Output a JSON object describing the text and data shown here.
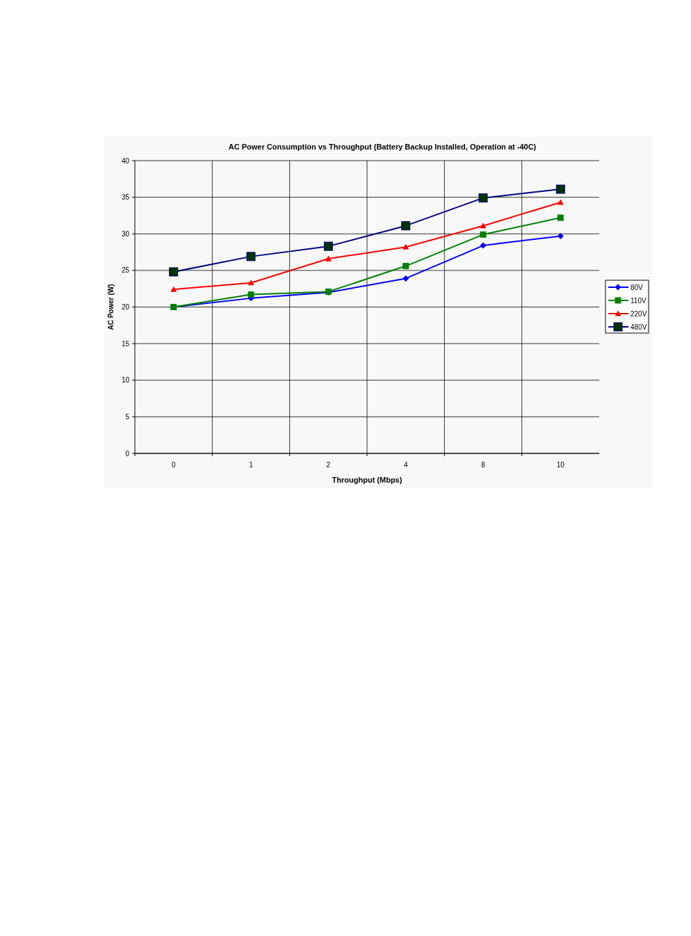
{
  "chart_data": {
    "type": "line",
    "title": "AC Power Consumption vs Throughput (Battery Backup Installed, Operation at -40C)",
    "xlabel": "Throughput (Mbps)",
    "ylabel": "AC Power (W)",
    "categories": [
      "0",
      "1",
      "2",
      "4",
      "8",
      "10"
    ],
    "ylim": [
      0,
      40
    ],
    "yticks": [
      0,
      5,
      10,
      15,
      20,
      25,
      30,
      35,
      40
    ],
    "grid": true,
    "legend": "right",
    "series": [
      {
        "name": "80V",
        "color": "#0000ff",
        "marker": "diamond",
        "values": [
          20,
          21.2,
          22.0,
          23.9,
          28.4,
          29.7
        ]
      },
      {
        "name": "110V",
        "color": "#008000",
        "marker": "square",
        "values": [
          20,
          21.7,
          22.1,
          25.6,
          29.9,
          32.2
        ]
      },
      {
        "name": "220V",
        "color": "#ff0000",
        "marker": "triangle",
        "values": [
          22.4,
          23.3,
          26.6,
          28.2,
          31.1,
          34.3
        ]
      },
      {
        "name": "480V",
        "color": "#000080",
        "marker": "square",
        "values": [
          24.8,
          26.9,
          28.3,
          31.1,
          34.9,
          36.1
        ]
      }
    ]
  }
}
